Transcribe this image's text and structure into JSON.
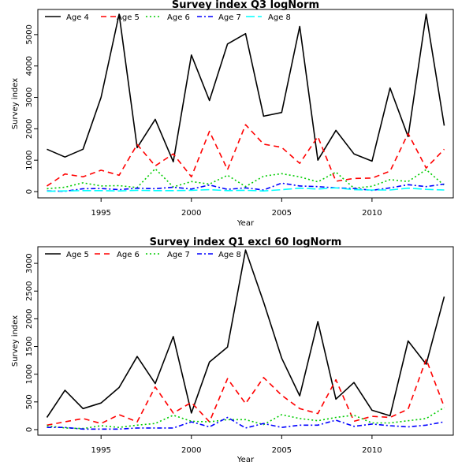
{
  "chart_data": [
    {
      "type": "line",
      "title": "Survey index Q3 logNorm",
      "xlabel": "Year",
      "ylabel": "Survey index",
      "xlim": [
        1991.5,
        2014.5
      ],
      "ylim": [
        -200,
        5800
      ],
      "xticks": [
        1995,
        2000,
        2005,
        2010
      ],
      "yticks": [
        0,
        1000,
        2000,
        3000,
        4000,
        5000
      ],
      "x": [
        1992,
        1993,
        1994,
        1995,
        1996,
        1997,
        1998,
        1999,
        2000,
        2001,
        2002,
        2003,
        2004,
        2005,
        2006,
        2007,
        2008,
        2009,
        2010,
        2011,
        2012,
        2013,
        2014
      ],
      "legend": "top",
      "series": [
        {
          "name": "Age 4",
          "color": "#000000",
          "dash": "solid",
          "values": [
            1350,
            1100,
            1350,
            3000,
            5650,
            1400,
            2300,
            950,
            4350,
            2900,
            4700,
            5030,
            2400,
            2520,
            5260,
            1000,
            1950,
            1200,
            970,
            3300,
            1750,
            5650,
            2100
          ]
        },
        {
          "name": "Age 5",
          "color": "#ff0000",
          "dash": "dashed",
          "values": [
            180,
            560,
            470,
            680,
            520,
            1500,
            820,
            1200,
            470,
            1920,
            700,
            2130,
            1510,
            1410,
            900,
            1750,
            330,
            420,
            430,
            650,
            1850,
            750,
            1350
          ]
        },
        {
          "name": "Age 6",
          "color": "#00cc00",
          "dash": "dotted",
          "values": [
            90,
            140,
            280,
            180,
            190,
            130,
            730,
            150,
            320,
            240,
            520,
            160,
            490,
            570,
            470,
            310,
            620,
            110,
            170,
            380,
            320,
            700,
            200
          ]
        },
        {
          "name": "Age 7",
          "color": "#0000ff",
          "dash": "dashdot",
          "values": [
            20,
            10,
            90,
            100,
            60,
            110,
            90,
            140,
            80,
            210,
            70,
            120,
            50,
            270,
            180,
            160,
            120,
            100,
            40,
            120,
            220,
            160,
            240
          ]
        },
        {
          "name": "Age 8",
          "color": "#00ffff",
          "dash": "longdash",
          "values": [
            10,
            20,
            30,
            30,
            20,
            40,
            30,
            30,
            40,
            60,
            30,
            40,
            20,
            60,
            110,
            80,
            120,
            60,
            50,
            50,
            110,
            70,
            50
          ]
        }
      ]
    },
    {
      "type": "line",
      "title": "Survey index Q1 excl 60 logNorm",
      "xlabel": "Year",
      "ylabel": "Survey index",
      "xlim": [
        1991.5,
        2014.5
      ],
      "ylim": [
        -100,
        3300
      ],
      "xticks": [
        1995,
        2000,
        2005,
        2010
      ],
      "yticks": [
        0,
        500,
        1000,
        1500,
        2000,
        2500,
        3000
      ],
      "x": [
        1992,
        1993,
        1994,
        1995,
        1996,
        1997,
        1998,
        1999,
        2000,
        2001,
        2002,
        2003,
        2004,
        2005,
        2006,
        2007,
        2008,
        2009,
        2010,
        2011,
        2012,
        2013,
        2014
      ],
      "legend": "top",
      "series": [
        {
          "name": "Age 5",
          "color": "#000000",
          "dash": "solid",
          "values": [
            220,
            710,
            380,
            480,
            760,
            1320,
            830,
            1680,
            300,
            1220,
            1490,
            3240,
            2300,
            1290,
            610,
            1950,
            550,
            850,
            350,
            250,
            1600,
            1180,
            2400
          ]
        },
        {
          "name": "Age 6",
          "color": "#ff0000",
          "dash": "dashed",
          "values": [
            80,
            140,
            200,
            110,
            270,
            140,
            770,
            300,
            490,
            140,
            920,
            470,
            940,
            620,
            380,
            290,
            900,
            150,
            240,
            220,
            370,
            1270,
            410
          ]
        },
        {
          "name": "Age 7",
          "color": "#00cc00",
          "dash": "dotted",
          "values": [
            70,
            30,
            20,
            70,
            40,
            80,
            110,
            260,
            150,
            140,
            180,
            180,
            90,
            270,
            200,
            160,
            220,
            260,
            120,
            120,
            160,
            200,
            400
          ]
        },
        {
          "name": "Age 8",
          "color": "#0000ff",
          "dash": "dashdot",
          "values": [
            40,
            40,
            10,
            10,
            10,
            30,
            30,
            30,
            140,
            50,
            220,
            30,
            110,
            40,
            80,
            80,
            170,
            60,
            100,
            70,
            50,
            80,
            140
          ]
        }
      ]
    }
  ]
}
